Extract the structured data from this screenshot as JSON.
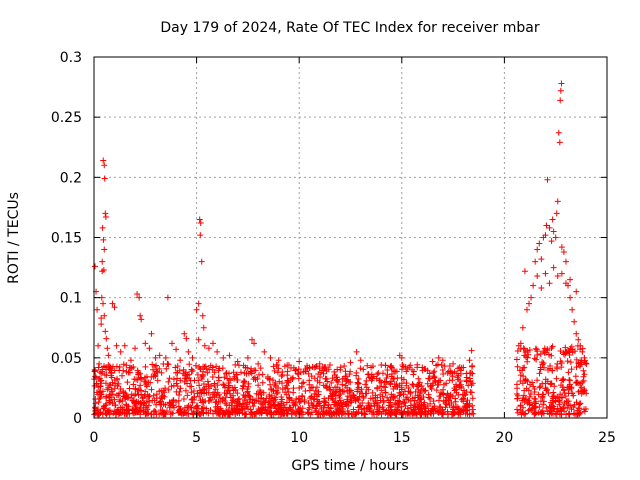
{
  "chart_data": {
    "type": "scatter",
    "title": "Day 179 of 2024, Rate Of TEC Index for receiver mbar",
    "xlabel": "GPS time / hours",
    "ylabel": "ROTI / TECUs",
    "xlim": [
      0,
      25
    ],
    "ylim": [
      0,
      0.3
    ],
    "x_ticks": [
      0,
      5,
      10,
      15,
      20,
      25
    ],
    "x_tick_labels": [
      "0",
      "5",
      "10",
      "15",
      "20",
      "25"
    ],
    "y_ticks": [
      0,
      0.05,
      0.1,
      0.15,
      0.2,
      0.25,
      0.3
    ],
    "y_tick_labels": [
      "0",
      "0.05",
      "0.1",
      "0.15",
      "0.2",
      "0.25",
      "0.3"
    ],
    "grid": true,
    "marker": "+",
    "series": [
      {
        "name": "ROTI",
        "color": "#ff0000",
        "points": [
          [
            0.05,
            0.126
          ],
          [
            0.1,
            0.105
          ],
          [
            0.15,
            0.09
          ],
          [
            0.2,
            0.06
          ],
          [
            0.25,
            0.045
          ],
          [
            0.3,
            0.038
          ],
          [
            0.35,
            0.083
          ],
          [
            0.4,
            0.122
          ],
          [
            0.45,
            0.214
          ],
          [
            0.5,
            0.21
          ],
          [
            0.52,
            0.199
          ],
          [
            0.55,
            0.17
          ],
          [
            0.58,
            0.167
          ],
          [
            0.42,
            0.158
          ],
          [
            0.46,
            0.148
          ],
          [
            0.5,
            0.14
          ],
          [
            0.4,
            0.13
          ],
          [
            0.48,
            0.123
          ],
          [
            0.38,
            0.1
          ],
          [
            0.44,
            0.095
          ],
          [
            0.5,
            0.085
          ],
          [
            0.35,
            0.078
          ],
          [
            0.55,
            0.072
          ],
          [
            0.6,
            0.066
          ],
          [
            0.65,
            0.058
          ],
          [
            0.7,
            0.052
          ],
          [
            0.9,
            0.095
          ],
          [
            1.0,
            0.092
          ],
          [
            1.1,
            0.06
          ],
          [
            1.3,
            0.055
          ],
          [
            1.5,
            0.06
          ],
          [
            1.8,
            0.048
          ],
          [
            2.0,
            0.058
          ],
          [
            2.1,
            0.103
          ],
          [
            2.2,
            0.1
          ],
          [
            2.25,
            0.085
          ],
          [
            2.3,
            0.082
          ],
          [
            2.5,
            0.062
          ],
          [
            2.7,
            0.058
          ],
          [
            2.8,
            0.07
          ],
          [
            3.0,
            0.05
          ],
          [
            3.2,
            0.052
          ],
          [
            3.5,
            0.05
          ],
          [
            3.6,
            0.1
          ],
          [
            3.8,
            0.062
          ],
          [
            4.0,
            0.057
          ],
          [
            4.2,
            0.048
          ],
          [
            4.4,
            0.07
          ],
          [
            4.5,
            0.066
          ],
          [
            4.6,
            0.055
          ],
          [
            4.8,
            0.05
          ],
          [
            5.0,
            0.09
          ],
          [
            5.1,
            0.095
          ],
          [
            5.15,
            0.165
          ],
          [
            5.2,
            0.162
          ],
          [
            5.18,
            0.152
          ],
          [
            5.25,
            0.13
          ],
          [
            5.3,
            0.085
          ],
          [
            5.35,
            0.075
          ],
          [
            5.1,
            0.065
          ],
          [
            5.4,
            0.06
          ],
          [
            5.6,
            0.058
          ],
          [
            5.8,
            0.062
          ],
          [
            6.0,
            0.055
          ],
          [
            6.3,
            0.05
          ],
          [
            6.6,
            0.052
          ],
          [
            7.0,
            0.047
          ],
          [
            7.5,
            0.05
          ],
          [
            7.7,
            0.065
          ],
          [
            7.8,
            0.062
          ],
          [
            8.0,
            0.045
          ],
          [
            8.3,
            0.055
          ],
          [
            8.6,
            0.05
          ],
          [
            9.0,
            0.048
          ],
          [
            9.5,
            0.044
          ],
          [
            10.0,
            0.047
          ],
          [
            10.5,
            0.042
          ],
          [
            11.0,
            0.045
          ],
          [
            11.5,
            0.044
          ],
          [
            12.0,
            0.04
          ],
          [
            12.5,
            0.046
          ],
          [
            12.8,
            0.055
          ],
          [
            13.0,
            0.048
          ],
          [
            13.5,
            0.042
          ],
          [
            14.0,
            0.044
          ],
          [
            14.5,
            0.042
          ],
          [
            14.9,
            0.052
          ],
          [
            15.0,
            0.05
          ],
          [
            15.5,
            0.04
          ],
          [
            16.0,
            0.042
          ],
          [
            16.5,
            0.047
          ],
          [
            16.8,
            0.05
          ],
          [
            17.0,
            0.048
          ],
          [
            17.5,
            0.045
          ],
          [
            18.0,
            0.042
          ],
          [
            18.3,
            0.048
          ],
          [
            18.4,
            0.056
          ],
          [
            20.7,
            0.06
          ],
          [
            20.8,
            0.062
          ],
          [
            20.9,
            0.075
          ],
          [
            21.0,
            0.122
          ],
          [
            21.1,
            0.09
          ],
          [
            21.2,
            0.095
          ],
          [
            21.3,
            0.1
          ],
          [
            21.4,
            0.11
          ],
          [
            21.5,
            0.13
          ],
          [
            21.6,
            0.14
          ],
          [
            21.7,
            0.145
          ],
          [
            21.8,
            0.132
          ],
          [
            21.9,
            0.15
          ],
          [
            22.0,
            0.152
          ],
          [
            22.05,
            0.16
          ],
          [
            22.1,
            0.198
          ],
          [
            22.2,
            0.158
          ],
          [
            22.3,
            0.147
          ],
          [
            22.35,
            0.165
          ],
          [
            22.4,
            0.155
          ],
          [
            22.5,
            0.15
          ],
          [
            22.55,
            0.17
          ],
          [
            22.6,
            0.18
          ],
          [
            22.65,
            0.237
          ],
          [
            22.7,
            0.229
          ],
          [
            22.72,
            0.264
          ],
          [
            22.75,
            0.272
          ],
          [
            22.78,
            0.278
          ],
          [
            22.8,
            0.142
          ],
          [
            22.9,
            0.138
          ],
          [
            23.0,
            0.13
          ],
          [
            23.1,
            0.11
          ],
          [
            23.2,
            0.1
          ],
          [
            23.3,
            0.09
          ],
          [
            23.4,
            0.08
          ],
          [
            23.5,
            0.07
          ],
          [
            23.6,
            0.065
          ],
          [
            23.7,
            0.06
          ],
          [
            23.8,
            0.055
          ],
          [
            23.9,
            0.05
          ],
          [
            24.0,
            0.045
          ],
          [
            21.6,
            0.118
          ],
          [
            22.0,
            0.12
          ],
          [
            22.4,
            0.125
          ],
          [
            22.8,
            0.12
          ],
          [
            23.2,
            0.115
          ],
          [
            23.5,
            0.105
          ],
          [
            21.8,
            0.108
          ],
          [
            22.2,
            0.112
          ],
          [
            22.6,
            0.118
          ],
          [
            23.0,
            0.112
          ]
        ],
        "baseline_bands": [
          {
            "x_range": [
              0,
              18.5
            ],
            "y_range": [
              0.003,
              0.045
            ]
          },
          {
            "x_range": [
              20.6,
              24.0
            ],
            "y_range": [
              0.003,
              0.06
            ]
          }
        ]
      }
    ]
  }
}
